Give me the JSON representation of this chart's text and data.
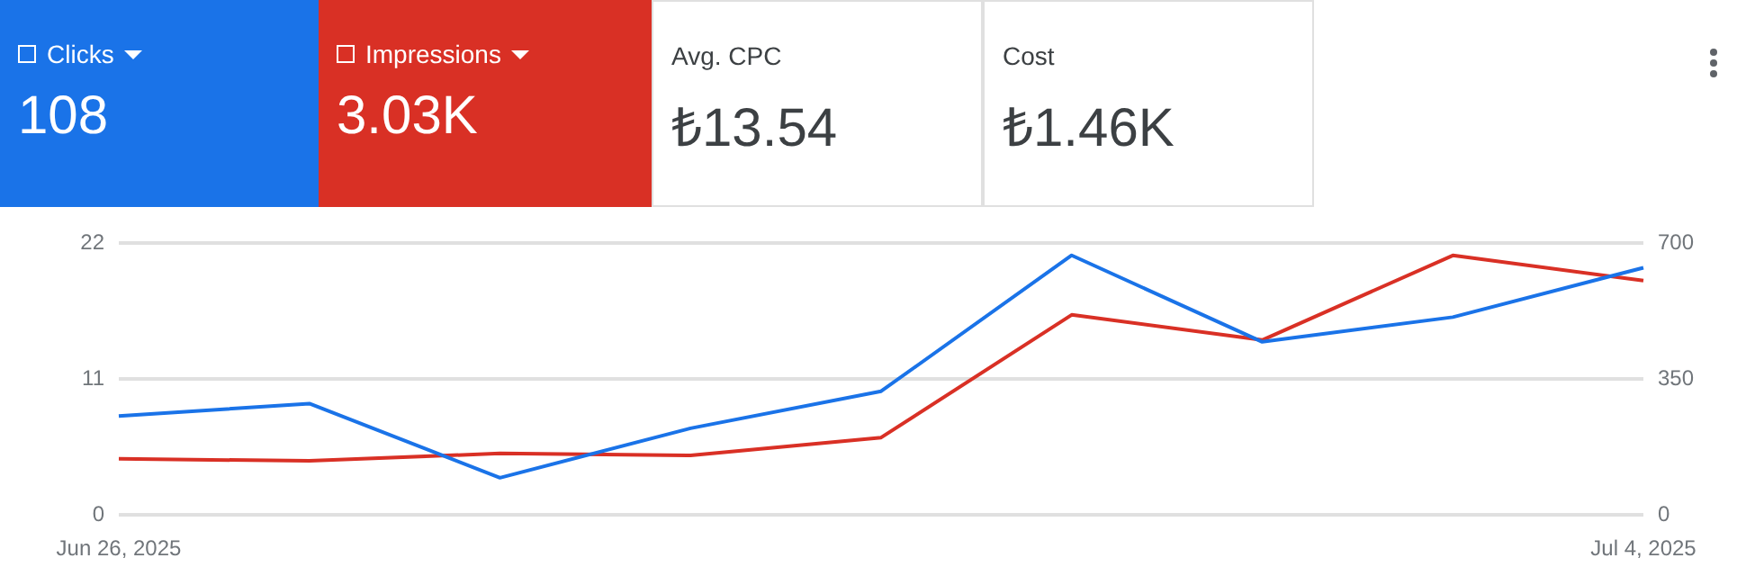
{
  "chart_data": {
    "type": "line",
    "categories": [
      "Jun 26, 2025",
      null,
      null,
      null,
      null,
      null,
      null,
      null,
      "Jul 4, 2025"
    ],
    "series": [
      {
        "name": "Clicks",
        "color": "#1a73e8",
        "values": [
          8,
          9,
          3,
          7,
          10,
          21,
          14,
          16,
          20
        ]
      },
      {
        "name": "Impressions",
        "color": "#d93025",
        "axis": "y2",
        "values": [
          144,
          139,
          158,
          153,
          199,
          515,
          450,
          668,
          603
        ]
      }
    ],
    "ylim": [
      0,
      22
    ],
    "yticks": [
      0,
      11,
      22
    ],
    "y2lim": [
      0,
      700
    ],
    "y2ticks": [
      0,
      350,
      700
    ],
    "grid": "y",
    "legend": "top left",
    "marker": "none",
    "line_style": "solid",
    "annotations": [
      "108",
      "3.03K",
      "Avg. CPC",
      "₺13.54",
      "Cost",
      "₺1.46K"
    ]
  }
}
